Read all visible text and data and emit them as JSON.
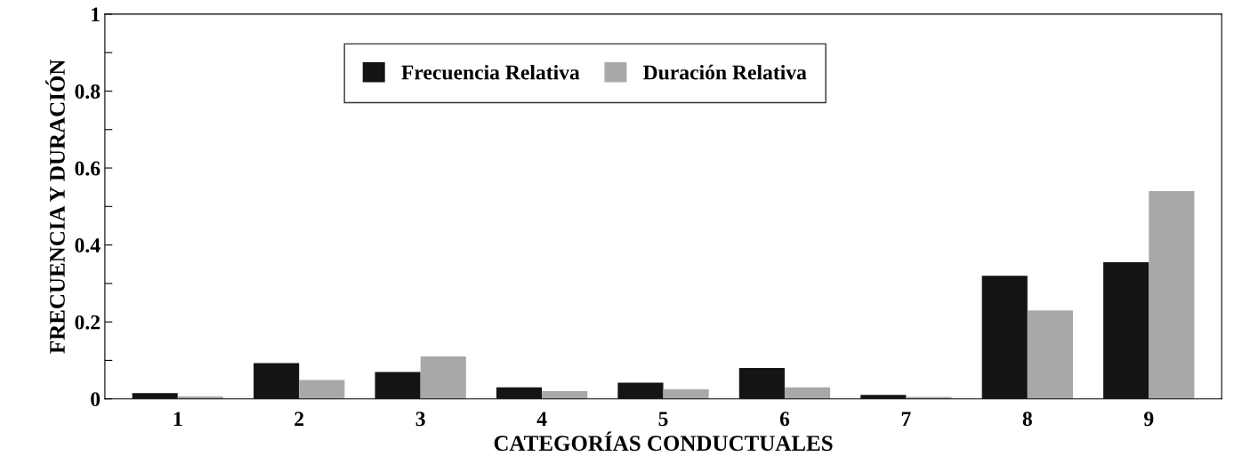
{
  "chart_data": {
    "type": "bar",
    "xlabel": "CATEGORÍAS CONDUCTUALES",
    "ylabel": "FRECUENCIA Y DURACIÓN",
    "categories": [
      "1",
      "2",
      "3",
      "4",
      "5",
      "6",
      "7",
      "8",
      "9"
    ],
    "series": [
      {
        "name": "Frecuencia Relativa",
        "color": "#141414",
        "values": [
          0.015,
          0.093,
          0.07,
          0.03,
          0.042,
          0.08,
          0.01,
          0.32,
          0.355
        ]
      },
      {
        "name": "Duración Relativa",
        "color": "#a8a8a8",
        "values": [
          0.006,
          0.049,
          0.11,
          0.02,
          0.025,
          0.03,
          0.005,
          0.23,
          0.54
        ]
      }
    ],
    "ylim": [
      0,
      1
    ],
    "yticks": [
      0,
      {
        "value": 0.1,
        "label": null
      },
      0.2,
      {
        "value": 0.3,
        "label": null
      },
      0.4,
      {
        "value": 0.5,
        "label": null
      },
      0.6,
      {
        "value": 0.7,
        "label": null
      },
      0.8,
      {
        "value": 0.9,
        "label": null
      },
      1
    ],
    "grid": false,
    "legend": "top"
  }
}
